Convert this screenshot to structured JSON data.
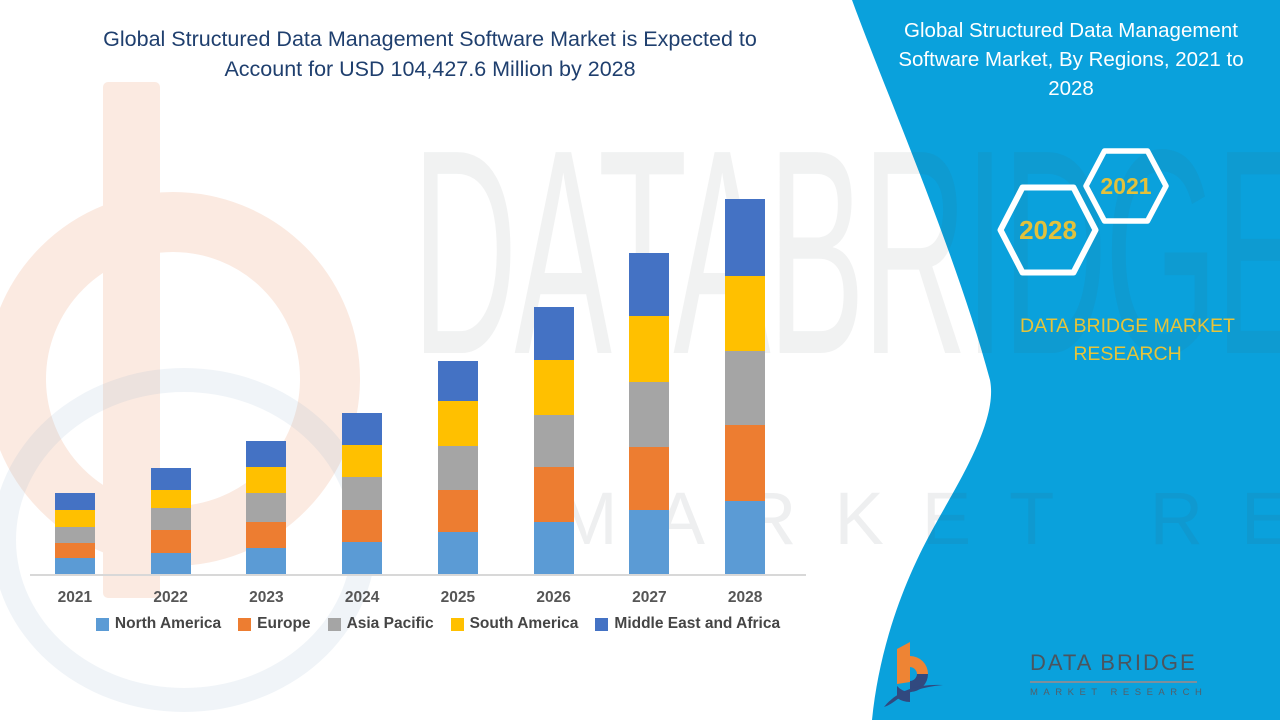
{
  "header": {
    "title_line1": "Global Structured Data Management Software Market is Expected to",
    "title_line2": "Account for USD 104,427.6 Million by 2028"
  },
  "side_panel": {
    "title": "Global Structured Data Management Software Market, By Regions, 2021 to 2028",
    "hexagon_back": "2021",
    "hexagon_front": "2028",
    "brand": "DATA BRIDGE MARKET RESEARCH"
  },
  "watermark": {
    "big_text": "DATABRIDGE",
    "sub_text": "MARKET RESEARCH"
  },
  "footer_logo": {
    "name": "DATA BRIDGE",
    "sub": "MARKET RESEARCH"
  },
  "colors": {
    "panel_blue": "#0aa1dc",
    "accent_yellow": "#e2c13b",
    "title_navy": "#1f3f6e"
  },
  "chart_data": {
    "type": "bar",
    "stacked": true,
    "title": "Global Structured Data Management Software Market, By Regions, 2021 to 2028",
    "unit": "USD Million",
    "values_estimated": true,
    "stated_total_2028": 104427.6,
    "categories": [
      "2021",
      "2022",
      "2023",
      "2024",
      "2025",
      "2026",
      "2027",
      "2028"
    ],
    "series": [
      {
        "name": "North America",
        "color": "#5B9BD5",
        "values": [
          4700,
          6100,
          7500,
          9200,
          11900,
          14700,
          18100,
          20600
        ]
      },
      {
        "name": "Europe",
        "color": "#ED7D31",
        "values": [
          4200,
          6400,
          7200,
          8900,
          11700,
          15300,
          17500,
          21100
        ]
      },
      {
        "name": "Asia Pacific",
        "color": "#A5A5A5",
        "values": [
          4400,
          6100,
          8100,
          9200,
          12200,
          14400,
          18100,
          20600
        ]
      },
      {
        "name": "South America",
        "color": "#FFC000",
        "values": [
          4700,
          5000,
          7200,
          8900,
          12500,
          15300,
          18100,
          20800
        ]
      },
      {
        "name": "Middle East and Africa",
        "color": "#4472C4",
        "values": [
          4700,
          6100,
          7200,
          8900,
          11100,
          14700,
          17500,
          21300
        ]
      }
    ],
    "x_axis": {
      "label": "",
      "tick_labels_visible": true
    },
    "y_axis": {
      "label": "",
      "visible": false,
      "gridlines": false
    },
    "legend_position": "bottom"
  }
}
